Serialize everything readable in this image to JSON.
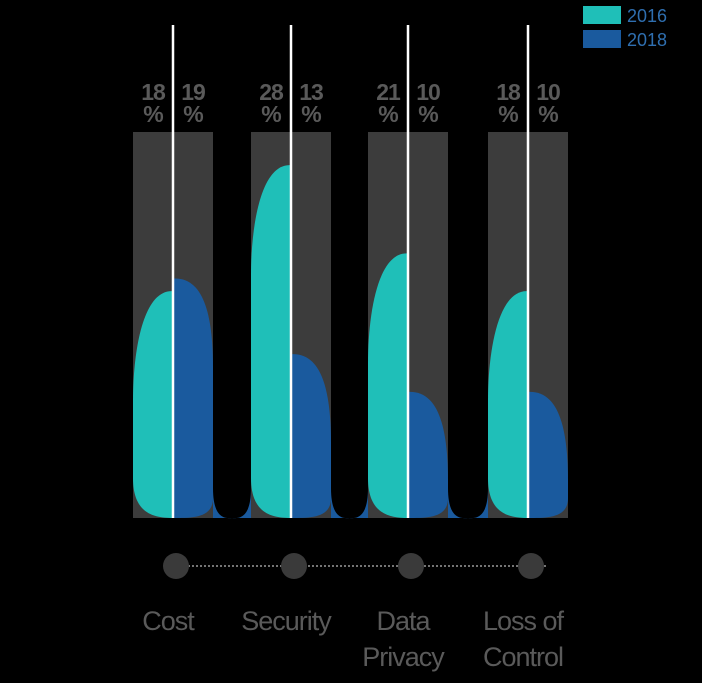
{
  "chart_data": {
    "type": "bar",
    "title": "",
    "xlabel": "",
    "ylabel": "",
    "ylim": [
      0,
      34
    ],
    "categories": [
      "Cost",
      "Security",
      "Data Privacy",
      "Loss of Control"
    ],
    "category_lines": [
      [
        "Cost"
      ],
      [
        "Security"
      ],
      [
        "Data",
        "Privacy"
      ],
      [
        "Loss of",
        "Control"
      ]
    ],
    "series": [
      {
        "name": "2016",
        "values": [
          18,
          28,
          21,
          18
        ],
        "color": "#1fbfb8",
        "labels": [
          [
            "18",
            "%"
          ],
          [
            "28",
            "%"
          ],
          [
            "21",
            "%"
          ],
          [
            "18",
            "%"
          ]
        ]
      },
      {
        "name": "2018",
        "values": [
          19,
          13,
          10,
          10
        ],
        "color": "#1a5a9e",
        "labels": [
          [
            "19",
            "%"
          ],
          [
            "13",
            "%"
          ],
          [
            "10",
            "%"
          ],
          [
            "10",
            "%"
          ]
        ]
      }
    ],
    "legend": {
      "position": "top-right",
      "entries": [
        "2016",
        "2018"
      ]
    },
    "grid": false,
    "colors": {
      "background": "#000000",
      "track": "#3c3c3c",
      "divider": "#ffffff",
      "text": "#5a5a5a",
      "timeline_dot": "#3a3a3a",
      "timeline_line": "#9a9a9a"
    }
  }
}
